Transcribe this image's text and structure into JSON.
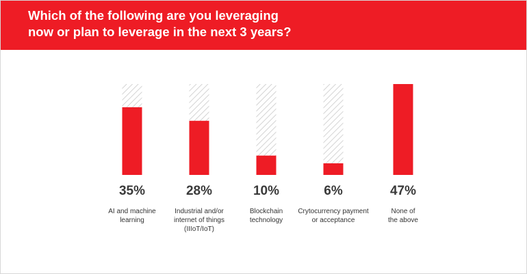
{
  "header": {
    "title": "Which of the following are you leveraging\nnow or plan to leverage in the next 3 years?"
  },
  "colors": {
    "accent": "#ee1c25",
    "hatch": "#c8c8c8",
    "value_text": "#3a3a3a"
  },
  "chart_data": {
    "type": "bar",
    "categories": [
      [
        "AI and machine",
        "learning"
      ],
      [
        "Industrial and/or",
        "internet of things",
        "(IIIoT/IoT)"
      ],
      [
        "Blockchain",
        "technology"
      ],
      [
        "Crytocurrency payment",
        "or acceptance"
      ],
      [
        "None of",
        "the above"
      ]
    ],
    "values": [
      35,
      28,
      10,
      6,
      47
    ],
    "value_labels": [
      "35%",
      "28%",
      "10%",
      "6%",
      "47%"
    ],
    "ylim": [
      0,
      47
    ],
    "unit": "%"
  }
}
